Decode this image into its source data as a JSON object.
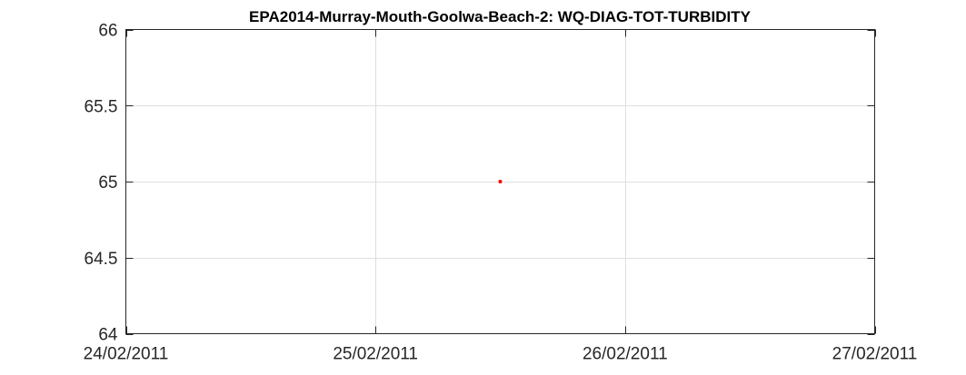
{
  "chart_data": {
    "type": "scatter",
    "title": "EPA2014-Murray-Mouth-Goolwa-Beach-2: WQ-DIAG-TOT-TURBIDITY",
    "xlabel": "",
    "ylabel": "",
    "x_axis_type": "date",
    "xlim": [
      "24/02/2011",
      "27/02/2011"
    ],
    "x_ticks": [
      "24/02/2011",
      "25/02/2011",
      "26/02/2011",
      "27/02/2011"
    ],
    "ylim": [
      64,
      66
    ],
    "y_ticks": [
      64,
      64.5,
      65,
      65.5,
      66
    ],
    "y_tick_labels": [
      "64",
      "64.5",
      "65",
      "65.5",
      "66"
    ],
    "grid": true,
    "series": [
      {
        "color": "#ff0000",
        "points": [
          {
            "x": "25/02/2011 12:00",
            "y": 65
          }
        ]
      }
    ]
  }
}
